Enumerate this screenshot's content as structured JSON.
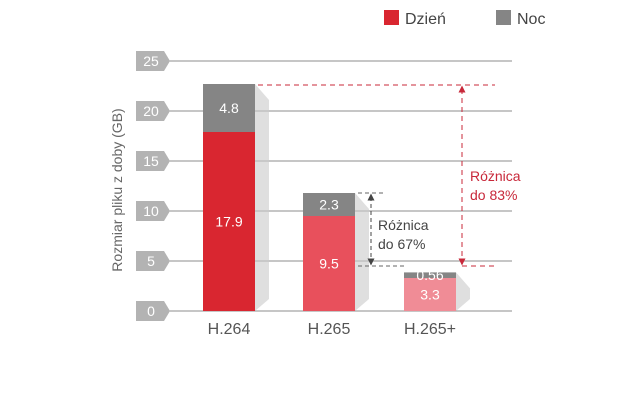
{
  "chart_data": {
    "type": "bar",
    "stacked": true,
    "categories": [
      "H.264",
      "H.265",
      "H.265+"
    ],
    "series": [
      {
        "name": "Dzień",
        "values": [
          17.9,
          9.5,
          3.3
        ],
        "labels": [
          "17.9",
          "9.5",
          "3.3"
        ],
        "colors": [
          "#d92630",
          "#e8505c",
          "#f08c96"
        ]
      },
      {
        "name": "Noc",
        "values": [
          4.8,
          2.3,
          0.56
        ],
        "labels": [
          "4.8",
          "2.3",
          "0.56"
        ],
        "color": "#858585"
      }
    ],
    "ylabel": "Rozmiar pliku z doby (GB)",
    "ylim": [
      0,
      25
    ],
    "yticks": [
      "0",
      "5",
      "10",
      "15",
      "20",
      "25"
    ],
    "grid": true,
    "legend_position": "top-right",
    "annotations": [
      {
        "text_line1": "Różnica",
        "text_line2": "do 67%",
        "color": "#444444",
        "from_value": 11.8,
        "to_value": 4.5
      },
      {
        "text_line1": "Różnica",
        "text_line2": "do 83%",
        "color": "#c8283a",
        "from_value": 22.7,
        "to_value": 4.5
      }
    ],
    "colors": {
      "day": "#d92630",
      "night": "#858585",
      "tick_bg": "#b3b3b3",
      "grid": "#8c8c8c"
    }
  }
}
